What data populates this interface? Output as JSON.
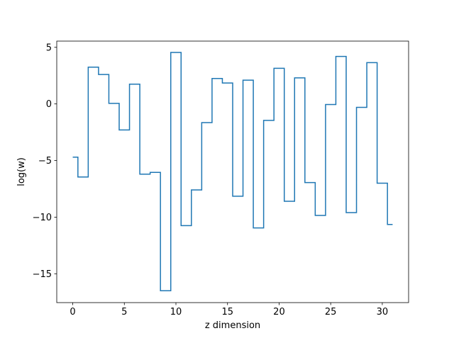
{
  "chart_data": {
    "type": "line",
    "drawstyle": "steps-mid",
    "title": "",
    "xlabel": "z dimension",
    "ylabel": "log(w)",
    "xlim": [
      -1.55,
      32.55
    ],
    "ylim": [
      -17.55,
      5.55
    ],
    "xticks": [
      0,
      5,
      10,
      15,
      20,
      25,
      30
    ],
    "xtick_labels": [
      "0",
      "5",
      "10",
      "15",
      "20",
      "25",
      "30"
    ],
    "yticks": [
      5,
      0,
      -5,
      -10,
      -15
    ],
    "ytick_labels": [
      "5",
      "0",
      "−5",
      "−10",
      "−15"
    ],
    "grid": false,
    "legend": "none",
    "series": [
      {
        "color": "#1f77b4",
        "x": [
          0,
          1,
          2,
          3,
          4,
          5,
          6,
          7,
          8,
          9,
          10,
          11,
          12,
          13,
          14,
          15,
          16,
          17,
          18,
          19,
          20,
          21,
          22,
          23,
          24,
          25,
          26,
          27,
          28,
          29,
          30,
          31
        ],
        "y": [
          -4.7,
          -6.45,
          3.25,
          2.6,
          0.05,
          -2.3,
          1.75,
          -6.2,
          -6.05,
          -16.5,
          4.55,
          -10.75,
          -7.6,
          -1.65,
          2.25,
          1.85,
          -8.15,
          2.1,
          -10.95,
          -1.45,
          3.15,
          -8.6,
          2.3,
          -6.95,
          -9.85,
          -0.05,
          4.2,
          -9.6,
          -0.3,
          3.65,
          -7.0,
          -10.65
        ]
      }
    ]
  }
}
